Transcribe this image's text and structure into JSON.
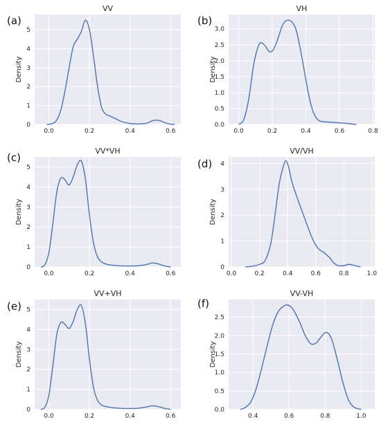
{
  "chart_data": [
    {
      "type": "line",
      "panel_letter": "(a)",
      "title": "VV",
      "xlabel": "",
      "ylabel": "Density",
      "xlim": [
        -0.07,
        0.65
      ],
      "ylim": [
        0,
        5.8
      ],
      "xticks": [
        0.0,
        0.2,
        0.4,
        0.6
      ],
      "xtick_labels": [
        "0.0",
        "0.2",
        "0.4",
        "0.6"
      ],
      "yticks": [
        0,
        1,
        2,
        3,
        4,
        5
      ],
      "ytick_labels": [
        "0",
        "1",
        "2",
        "3",
        "4",
        "5"
      ],
      "grid": true,
      "series": [
        {
          "x": [
            -0.01,
            0.02,
            0.04,
            0.06,
            0.08,
            0.1,
            0.12,
            0.14,
            0.16,
            0.18,
            0.2,
            0.22,
            0.24,
            0.26,
            0.28,
            0.3,
            0.33,
            0.36,
            0.4,
            0.44,
            0.48,
            0.5,
            0.52,
            0.54,
            0.56,
            0.58,
            0.6,
            0.62
          ],
          "y": [
            0.0,
            0.06,
            0.25,
            0.8,
            1.8,
            3.0,
            4.1,
            4.5,
            4.9,
            5.5,
            5.0,
            3.6,
            2.0,
            0.9,
            0.55,
            0.45,
            0.3,
            0.15,
            0.05,
            0.03,
            0.06,
            0.15,
            0.22,
            0.22,
            0.15,
            0.06,
            0.02,
            0.0
          ]
        }
      ]
    },
    {
      "type": "line",
      "panel_letter": "(b)",
      "title": "VH",
      "xlabel": "",
      "ylabel": "Density",
      "xlim": [
        -0.06,
        0.81
      ],
      "ylim": [
        0,
        3.45
      ],
      "xticks": [
        0.0,
        0.2,
        0.4,
        0.6,
        0.8
      ],
      "xtick_labels": [
        "0.0",
        "0.2",
        "0.4",
        "0.6",
        "0.8"
      ],
      "yticks": [
        0.0,
        0.5,
        1.0,
        1.5,
        2.0,
        2.5,
        3.0
      ],
      "ytick_labels": [
        "0.0",
        "0.5",
        "1.0",
        "1.5",
        "2.0",
        "2.5",
        "3.0"
      ],
      "grid": true,
      "series": [
        {
          "x": [
            0.0,
            0.03,
            0.06,
            0.09,
            0.12,
            0.14,
            0.16,
            0.18,
            0.2,
            0.22,
            0.24,
            0.26,
            0.28,
            0.3,
            0.32,
            0.34,
            0.36,
            0.38,
            0.4,
            0.42,
            0.44,
            0.46,
            0.48,
            0.5,
            0.55,
            0.6,
            0.65,
            0.7
          ],
          "y": [
            0.0,
            0.15,
            0.8,
            1.9,
            2.5,
            2.55,
            2.45,
            2.3,
            2.3,
            2.5,
            2.8,
            3.1,
            3.25,
            3.27,
            3.2,
            3.0,
            2.55,
            2.0,
            1.4,
            0.85,
            0.45,
            0.22,
            0.12,
            0.09,
            0.07,
            0.05,
            0.03,
            0.0
          ]
        }
      ]
    },
    {
      "type": "line",
      "panel_letter": "(c)",
      "title": "VV*VH",
      "xlabel": "",
      "ylabel": "Density",
      "xlim": [
        -0.07,
        0.65
      ],
      "ylim": [
        0,
        5.5
      ],
      "xticks": [
        0.0,
        0.2,
        0.4,
        0.6
      ],
      "xtick_labels": [
        "0.0",
        "0.2",
        "0.4",
        "0.6"
      ],
      "yticks": [
        0,
        1,
        2,
        3,
        4,
        5
      ],
      "ytick_labels": [
        "0",
        "1",
        "2",
        "3",
        "4",
        "5"
      ],
      "grid": true,
      "series": [
        {
          "x": [
            -0.04,
            -0.02,
            0.0,
            0.02,
            0.04,
            0.06,
            0.08,
            0.1,
            0.12,
            0.14,
            0.16,
            0.18,
            0.2,
            0.22,
            0.24,
            0.26,
            0.28,
            0.3,
            0.33,
            0.36,
            0.4,
            0.44,
            0.48,
            0.51,
            0.54,
            0.57,
            0.6
          ],
          "y": [
            0.0,
            0.1,
            0.7,
            2.2,
            3.8,
            4.45,
            4.35,
            4.1,
            4.5,
            5.1,
            5.3,
            4.4,
            2.6,
            1.2,
            0.5,
            0.25,
            0.15,
            0.1,
            0.07,
            0.05,
            0.05,
            0.06,
            0.12,
            0.2,
            0.15,
            0.05,
            0.0
          ]
        }
      ]
    },
    {
      "type": "line",
      "panel_letter": "(d)",
      "title": "VV/VH",
      "xlabel": "",
      "ylabel": "Density",
      "xlim": [
        -0.02,
        1.02
      ],
      "ylim": [
        0,
        4.25
      ],
      "xticks": [
        0.0,
        0.2,
        0.4,
        0.6,
        0.8,
        1.0
      ],
      "xtick_labels": [
        "0.0",
        "0.2",
        "0.4",
        "0.6",
        "0.8",
        "1.0"
      ],
      "yticks": [
        0,
        1,
        2,
        3,
        4
      ],
      "ytick_labels": [
        "0",
        "1",
        "2",
        "3",
        "4"
      ],
      "grid": true,
      "series": [
        {
          "x": [
            0.1,
            0.15,
            0.2,
            0.24,
            0.28,
            0.31,
            0.34,
            0.37,
            0.39,
            0.41,
            0.43,
            0.46,
            0.5,
            0.54,
            0.58,
            0.62,
            0.66,
            0.7,
            0.73,
            0.76,
            0.8,
            0.84,
            0.88,
            0.92
          ],
          "y": [
            0.0,
            0.03,
            0.1,
            0.25,
            0.9,
            2.0,
            3.2,
            3.9,
            4.1,
            3.8,
            3.3,
            2.8,
            2.2,
            1.6,
            1.05,
            0.7,
            0.55,
            0.35,
            0.15,
            0.05,
            0.05,
            0.1,
            0.05,
            0.0
          ]
        }
      ]
    },
    {
      "type": "line",
      "panel_letter": "(e)",
      "title": "VV+VH",
      "xlabel": "",
      "ylabel": "Density",
      "xlim": [
        -0.07,
        0.65
      ],
      "ylim": [
        0,
        5.5
      ],
      "xticks": [
        0.0,
        0.2,
        0.4,
        0.6
      ],
      "xtick_labels": [
        "0.0",
        "0.2",
        "0.4",
        "0.6"
      ],
      "yticks": [
        0,
        1,
        2,
        3,
        4,
        5
      ],
      "ytick_labels": [
        "0",
        "1",
        "2",
        "3",
        "4",
        "5"
      ],
      "grid": true,
      "series": [
        {
          "x": [
            -0.04,
            -0.02,
            0.0,
            0.02,
            0.04,
            0.06,
            0.08,
            0.1,
            0.12,
            0.14,
            0.16,
            0.18,
            0.2,
            0.22,
            0.24,
            0.26,
            0.28,
            0.3,
            0.33,
            0.36,
            0.4,
            0.44,
            0.48,
            0.51,
            0.54,
            0.57,
            0.6
          ],
          "y": [
            0.0,
            0.1,
            0.7,
            2.2,
            3.8,
            4.35,
            4.25,
            4.05,
            4.4,
            5.0,
            5.2,
            4.3,
            2.5,
            1.1,
            0.45,
            0.22,
            0.15,
            0.1,
            0.07,
            0.05,
            0.05,
            0.06,
            0.12,
            0.18,
            0.14,
            0.05,
            0.0
          ]
        }
      ]
    },
    {
      "type": "line",
      "panel_letter": "(f)",
      "title": "VV-VH",
      "xlabel": "",
      "ylabel": "Density",
      "xlim": [
        0.265,
        1.075
      ],
      "ylim": [
        0,
        2.98
      ],
      "xticks": [
        0.4,
        0.6,
        0.8,
        1.0
      ],
      "xtick_labels": [
        "0.4",
        "0.6",
        "0.8",
        "1.0"
      ],
      "yticks": [
        0.0,
        0.5,
        1.0,
        1.5,
        2.0,
        2.5
      ],
      "ytick_labels": [
        "0.0",
        "0.5",
        "1.0",
        "1.5",
        "2.0",
        "2.5"
      ],
      "grid": true,
      "series": [
        {
          "x": [
            0.33,
            0.36,
            0.39,
            0.42,
            0.45,
            0.48,
            0.51,
            0.54,
            0.57,
            0.59,
            0.61,
            0.63,
            0.66,
            0.69,
            0.72,
            0.75,
            0.78,
            0.8,
            0.82,
            0.84,
            0.87,
            0.9,
            0.93,
            0.96,
            1.0
          ],
          "y": [
            0.0,
            0.06,
            0.22,
            0.6,
            1.15,
            1.75,
            2.3,
            2.65,
            2.8,
            2.83,
            2.78,
            2.65,
            2.35,
            2.0,
            1.78,
            1.8,
            1.98,
            2.08,
            2.05,
            1.85,
            1.3,
            0.7,
            0.25,
            0.06,
            0.0
          ]
        }
      ]
    }
  ]
}
